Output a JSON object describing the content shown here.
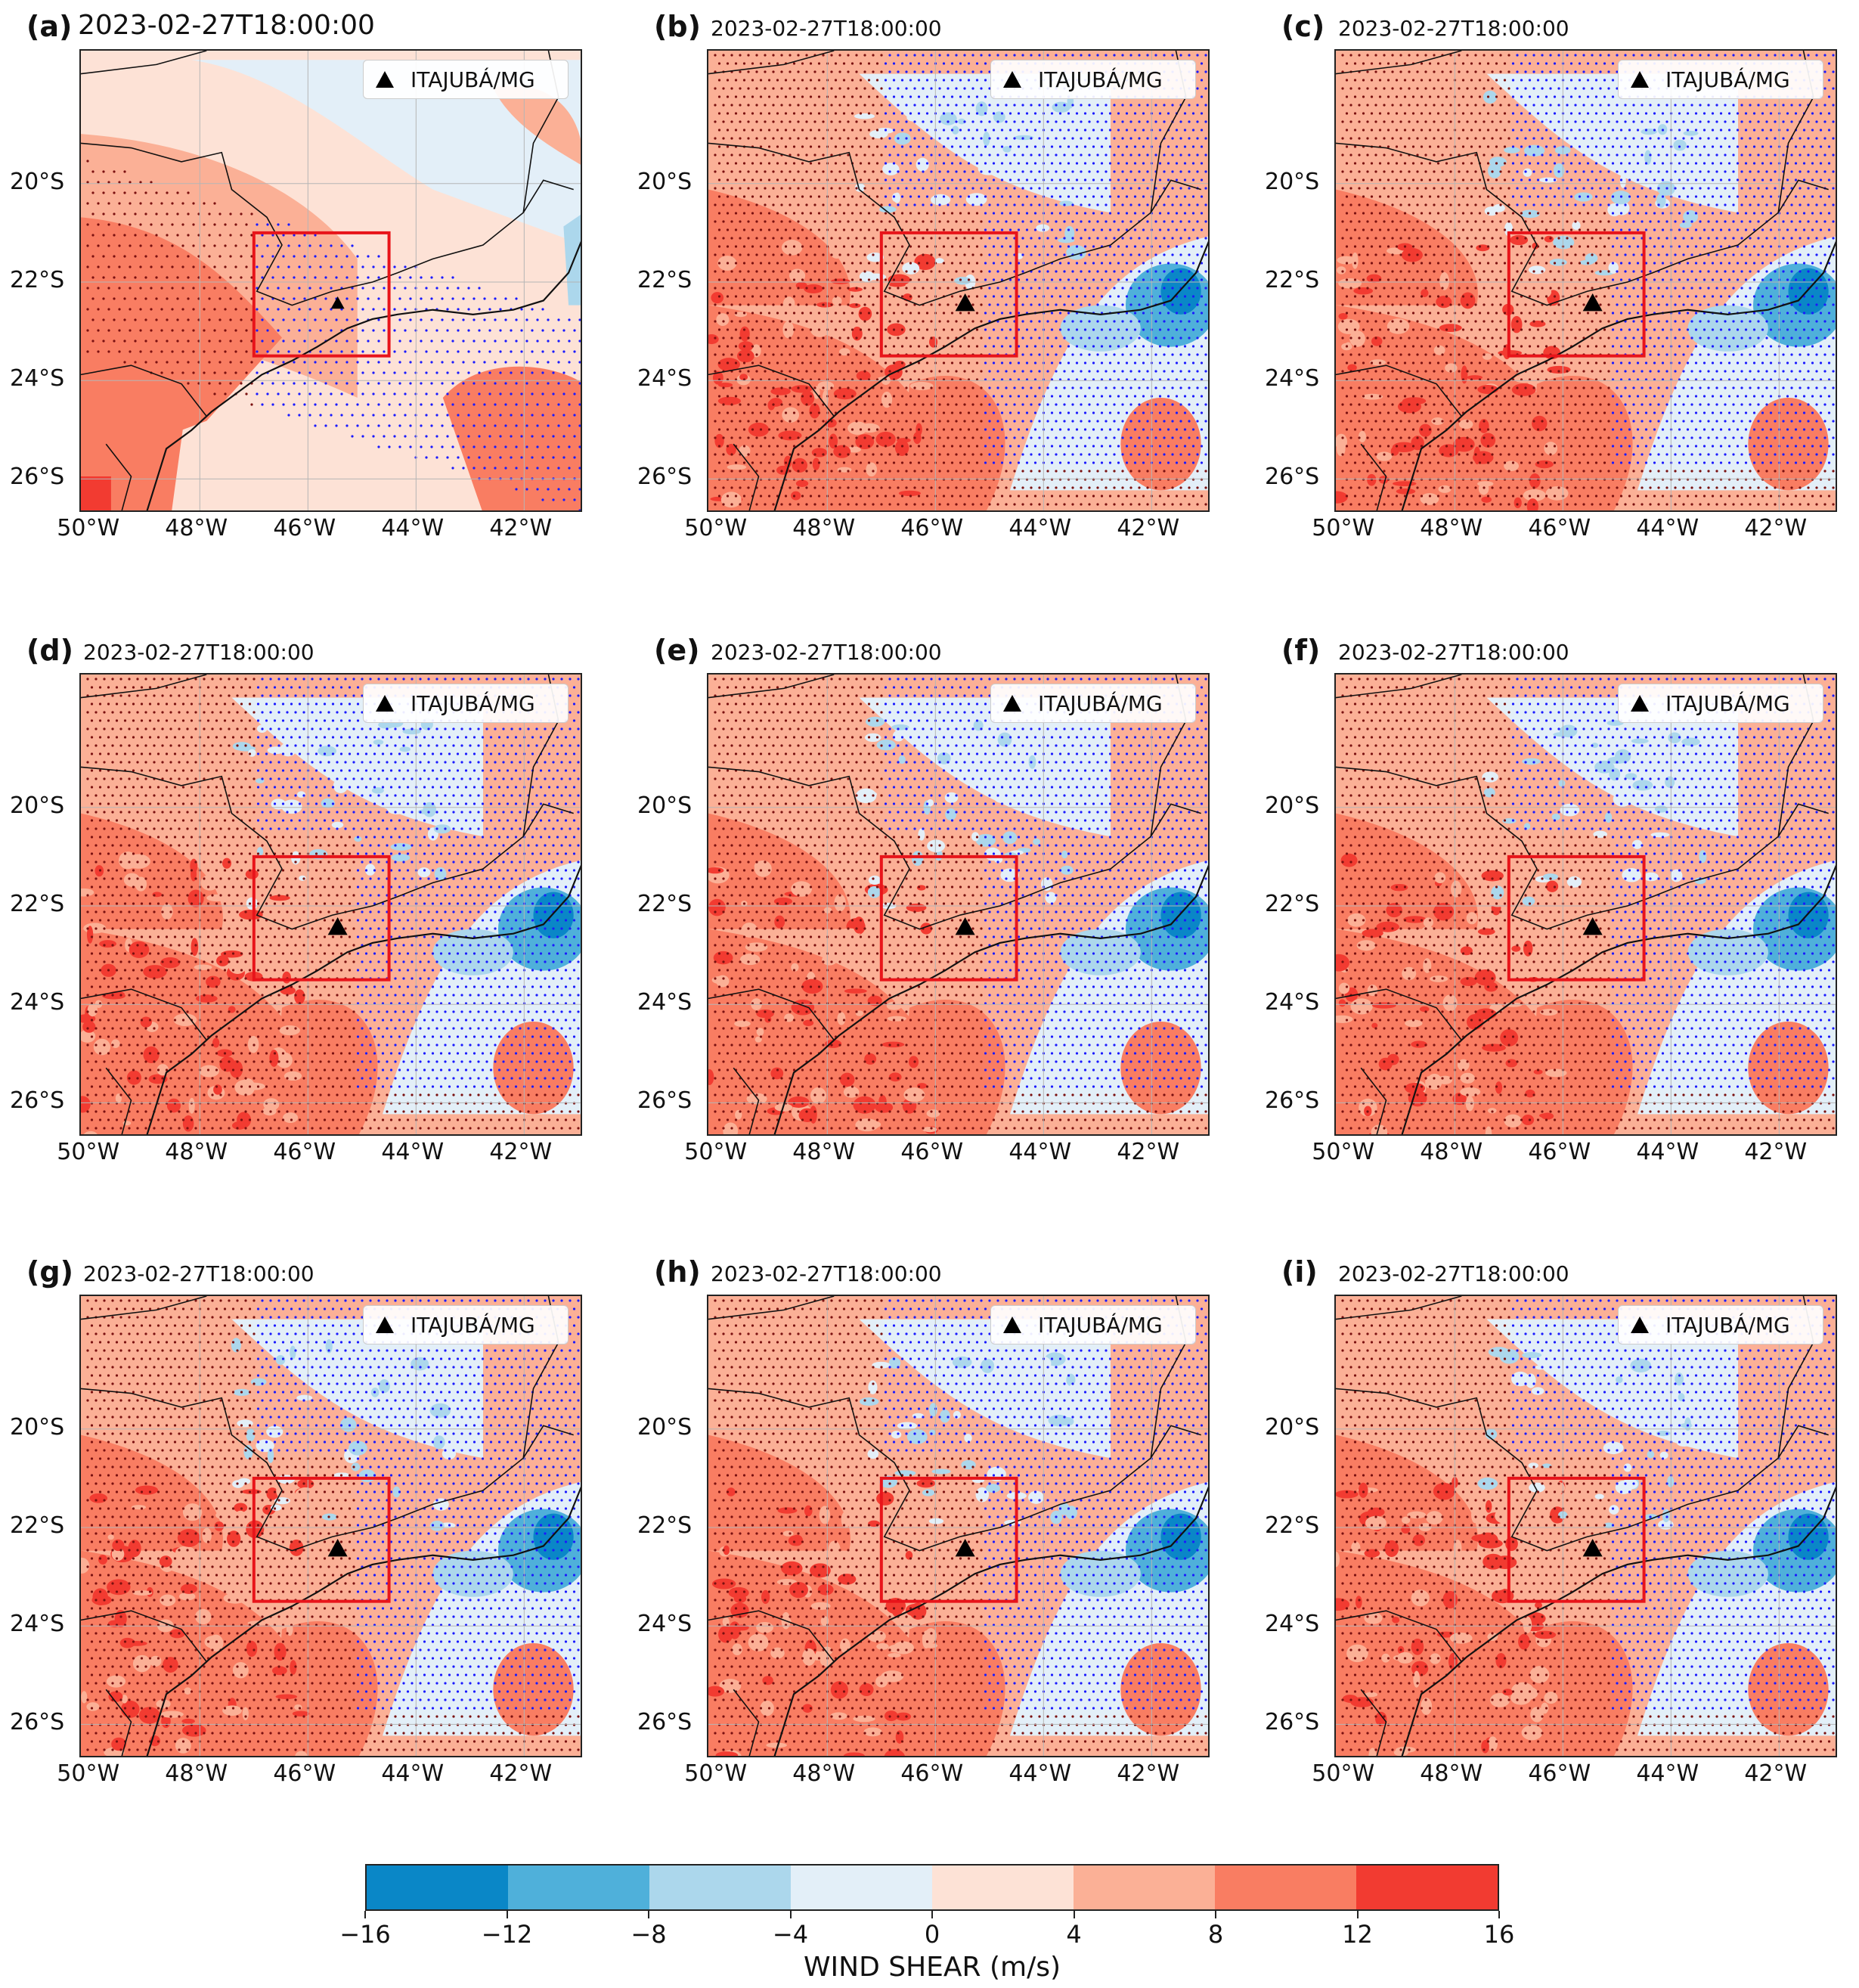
{
  "figure": {
    "station_label": "ITAJUBÁ/MG",
    "station_marker": "triangle-marker-icon",
    "colorbar_label": "WIND SHEAR (m/s)",
    "colorbar_ticks": [
      "−16",
      "−12",
      "−8",
      "−4",
      "0",
      "4",
      "8",
      "12",
      "16"
    ],
    "colorbar_colors": [
      "#0a87c7",
      "#4fb0da",
      "#acd7ec",
      "#e3eff8",
      "#fde2d6",
      "#fbb096",
      "#f97d62",
      "#f23b31"
    ],
    "lat_labels": [
      "20°S",
      "22°S",
      "24°S",
      "26°S"
    ],
    "lon_labels": [
      "50°W",
      "48°W",
      "46°W",
      "44°W",
      "42°W"
    ],
    "highlight_box_color": "#e8141a",
    "stipple_colors": {
      "positive": "#7a1010",
      "negative": "#1a1aff"
    }
  },
  "panels": [
    {
      "letter": "(a)",
      "timestamp": "2023-02-27T18:00:00"
    },
    {
      "letter": "(b)",
      "timestamp": "2023-02-27T18:00:00"
    },
    {
      "letter": "(c)",
      "timestamp": "2023-02-27T18:00:00"
    },
    {
      "letter": "(d)",
      "timestamp": "2023-02-27T18:00:00"
    },
    {
      "letter": "(e)",
      "timestamp": "2023-02-27T18:00:00"
    },
    {
      "letter": "(f)",
      "timestamp": "2023-02-27T18:00:00"
    },
    {
      "letter": "(g)",
      "timestamp": "2023-02-27T18:00:00"
    },
    {
      "letter": "(h)",
      "timestamp": "2023-02-27T18:00:00"
    },
    {
      "letter": "(i)",
      "timestamp": "2023-02-27T18:00:00"
    }
  ]
}
